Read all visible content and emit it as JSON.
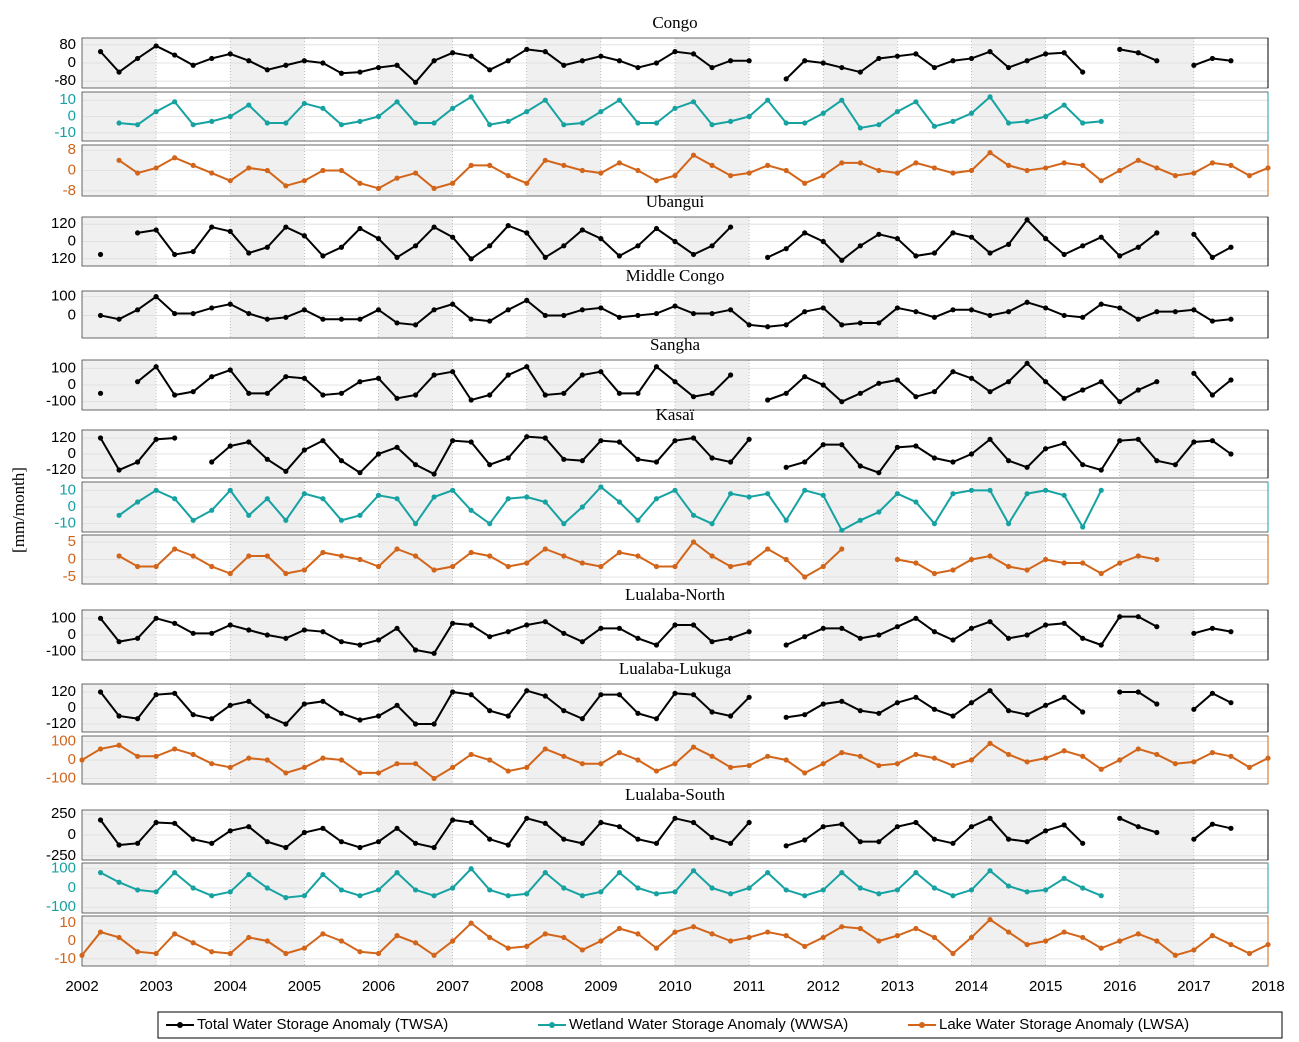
{
  "chart_data": {
    "type": "line",
    "ylabel": "[mm/month]",
    "x": [
      2002,
      2002.25,
      2002.5,
      2002.75,
      2003,
      2003.25,
      2003.5,
      2003.75,
      2004,
      2004.25,
      2004.5,
      2004.75,
      2005,
      2005.25,
      2005.5,
      2005.75,
      2006,
      2006.25,
      2006.5,
      2006.75,
      2007,
      2007.25,
      2007.5,
      2007.75,
      2008,
      2008.25,
      2008.5,
      2008.75,
      2009,
      2009.25,
      2009.5,
      2009.75,
      2010,
      2010.25,
      2010.5,
      2010.75,
      2011,
      2011.25,
      2011.5,
      2011.75,
      2012,
      2012.25,
      2012.5,
      2012.75,
      2013,
      2013.25,
      2013.5,
      2013.75,
      2014,
      2014.25,
      2014.5,
      2014.75,
      2015,
      2015.25,
      2015.5,
      2015.75,
      2016,
      2016.25,
      2016.5,
      2016.75,
      2017,
      2017.25,
      2017.5,
      2017.75,
      2018
    ],
    "xlim": [
      2002,
      2018
    ],
    "xticks": [
      2002,
      2003,
      2004,
      2005,
      2006,
      2007,
      2008,
      2009,
      2010,
      2011,
      2012,
      2013,
      2014,
      2015,
      2016,
      2017,
      2018
    ],
    "legend": [
      {
        "name": "Total Water Storage Anomaly (TWSA)",
        "color": "#000000"
      },
      {
        "name": "Wetland Water Storage Anomaly (WWSA)",
        "color": "#17a2a2"
      },
      {
        "name": "Lake Water Storage Anomaly (LWSA)",
        "color": "#d2651a"
      }
    ],
    "panels": [
      {
        "title": "Congo",
        "color": "#000000",
        "ylim": [
          -110,
          110
        ],
        "yticks": [
          -80,
          0,
          80
        ],
        "values": [
          null,
          50,
          -40,
          20,
          75,
          35,
          -10,
          20,
          40,
          10,
          -30,
          -10,
          10,
          0,
          -45,
          -40,
          -20,
          -10,
          -85,
          10,
          45,
          30,
          -30,
          10,
          60,
          50,
          -10,
          10,
          30,
          10,
          -20,
          0,
          50,
          40,
          -20,
          10,
          10,
          null,
          -70,
          10,
          0,
          -20,
          -40,
          20,
          30,
          40,
          -20,
          10,
          20,
          50,
          -20,
          10,
          40,
          45,
          -40,
          null,
          60,
          45,
          10,
          null,
          -10,
          20,
          10,
          null,
          null
        ]
      },
      {
        "color": "#17a2a2",
        "ylim": [
          -15,
          15
        ],
        "yticks": [
          -10,
          0,
          10
        ],
        "values": [
          null,
          null,
          -4,
          -5,
          3,
          9,
          -5,
          -3,
          0,
          7,
          -4,
          -4,
          8,
          5,
          -5,
          -3,
          0,
          9,
          -4,
          -4,
          5,
          12,
          -5,
          -3,
          3,
          10,
          -5,
          -4,
          3,
          10,
          -4,
          -4,
          5,
          9,
          -5,
          -3,
          0,
          10,
          -4,
          -4,
          2,
          10,
          -7,
          -5,
          3,
          9,
          -6,
          -3,
          2,
          12,
          -4,
          -3,
          0,
          7,
          -4,
          -3,
          null,
          null,
          null,
          null,
          null,
          null,
          null,
          null,
          null
        ]
      },
      {
        "color": "#d2651a",
        "ylim": [
          -10,
          10
        ],
        "yticks": [
          -8,
          0,
          8
        ],
        "values": [
          null,
          null,
          4,
          -1,
          1,
          5,
          2,
          -1,
          -4,
          1,
          0,
          -6,
          -4,
          0,
          0,
          -5,
          -7,
          -3,
          -1,
          -7,
          -5,
          2,
          2,
          -2,
          -5,
          4,
          2,
          0,
          -1,
          3,
          0,
          -4,
          -2,
          6,
          2,
          -2,
          -1,
          2,
          0,
          -5,
          -2,
          3,
          3,
          0,
          -1,
          3,
          1,
          -1,
          0,
          7,
          2,
          0,
          1,
          3,
          2,
          -4,
          0,
          4,
          1,
          -2,
          -1,
          3,
          2,
          -2,
          1
        ]
      },
      {
        "title": "Ubangui",
        "color": "#000000",
        "ylim": [
          -170,
          170
        ],
        "yticks": [
          {
            "value": -120,
            "label": "120"
          },
          0,
          120
        ],
        "values": [
          null,
          -90,
          null,
          60,
          80,
          -90,
          -70,
          100,
          70,
          -80,
          -40,
          100,
          40,
          -100,
          -40,
          90,
          20,
          -110,
          -30,
          100,
          30,
          -120,
          -30,
          110,
          60,
          -110,
          -30,
          80,
          20,
          -100,
          -30,
          90,
          0,
          -90,
          -30,
          100,
          null,
          -110,
          -50,
          60,
          0,
          -130,
          -30,
          50,
          20,
          -100,
          -80,
          60,
          30,
          -80,
          -20,
          150,
          20,
          -90,
          -30,
          30,
          -100,
          -40,
          60,
          null,
          50,
          -110,
          -40,
          null,
          null
        ]
      },
      {
        "title": "Middle Congo",
        "color": "#000000",
        "ylim": [
          -120,
          130
        ],
        "yticks": [
          0,
          100
        ],
        "values": [
          null,
          0,
          -20,
          30,
          100,
          10,
          10,
          40,
          60,
          10,
          -20,
          -10,
          30,
          -20,
          -20,
          -20,
          30,
          -40,
          -50,
          30,
          60,
          -20,
          -30,
          30,
          80,
          0,
          0,
          30,
          40,
          -10,
          0,
          10,
          50,
          10,
          10,
          30,
          -50,
          -60,
          -50,
          20,
          40,
          -50,
          -40,
          -40,
          40,
          20,
          -10,
          30,
          30,
          0,
          20,
          70,
          40,
          0,
          -10,
          60,
          40,
          -20,
          20,
          20,
          30,
          -30,
          -20,
          null,
          null
        ]
      },
      {
        "title": "Sangha",
        "color": "#000000",
        "ylim": [
          -150,
          150
        ],
        "yticks": [
          -100,
          0,
          100
        ],
        "values": [
          null,
          -50,
          null,
          20,
          110,
          -60,
          -40,
          50,
          90,
          -50,
          -50,
          50,
          40,
          -60,
          -50,
          20,
          40,
          -80,
          -60,
          60,
          80,
          -90,
          -60,
          60,
          110,
          -60,
          -50,
          60,
          80,
          -50,
          -50,
          110,
          20,
          -70,
          -50,
          60,
          null,
          -90,
          -50,
          50,
          0,
          -100,
          -50,
          10,
          30,
          -70,
          -40,
          80,
          40,
          -40,
          20,
          130,
          20,
          -80,
          -30,
          20,
          -100,
          -30,
          20,
          null,
          70,
          -60,
          30,
          null,
          null
        ]
      },
      {
        "title": "Kasaï",
        "color": "#000000",
        "ylim": [
          -180,
          180
        ],
        "yticks": [
          -120,
          0,
          120
        ],
        "values": [
          null,
          120,
          -120,
          -60,
          110,
          120,
          null,
          -60,
          60,
          90,
          -40,
          -130,
          30,
          100,
          -50,
          -140,
          0,
          50,
          -80,
          -150,
          100,
          90,
          -80,
          -30,
          130,
          120,
          -40,
          -50,
          100,
          90,
          -40,
          -60,
          100,
          120,
          -30,
          -60,
          110,
          null,
          -100,
          -60,
          70,
          70,
          -90,
          -140,
          50,
          60,
          -30,
          -60,
          0,
          110,
          -50,
          -100,
          40,
          80,
          -80,
          -120,
          100,
          110,
          -50,
          -80,
          90,
          100,
          0,
          null,
          null
        ]
      },
      {
        "color": "#17a2a2",
        "ylim": [
          -15,
          15
        ],
        "yticks": [
          -10,
          0,
          10
        ],
        "values": [
          null,
          null,
          -5,
          3,
          10,
          5,
          -8,
          -2,
          10,
          -5,
          5,
          -8,
          8,
          5,
          -8,
          -5,
          7,
          5,
          -10,
          6,
          10,
          -2,
          -10,
          5,
          6,
          3,
          -10,
          0,
          12,
          3,
          -8,
          5,
          10,
          -5,
          -10,
          8,
          6,
          8,
          -8,
          10,
          7,
          -14,
          -8,
          -3,
          8,
          3,
          -10,
          8,
          10,
          10,
          -10,
          8,
          10,
          7,
          -12,
          10,
          null,
          null,
          null,
          null,
          null,
          null,
          null,
          null,
          null
        ]
      },
      {
        "color": "#d2651a",
        "ylim": [
          -7,
          7
        ],
        "yticks": [
          -5,
          0,
          5
        ],
        "values": [
          null,
          null,
          1,
          -2,
          -2,
          3,
          1,
          -2,
          -4,
          1,
          1,
          -4,
          -3,
          2,
          1,
          0,
          -2,
          3,
          1,
          -3,
          -2,
          2,
          1,
          -2,
          -1,
          3,
          1,
          -1,
          -2,
          2,
          1,
          -2,
          -2,
          5,
          1,
          -2,
          -1,
          3,
          0,
          -5,
          -2,
          3,
          null,
          null,
          0,
          -1,
          -4,
          -3,
          0,
          1,
          -2,
          -3,
          0,
          -1,
          -1,
          -4,
          -1,
          1,
          0,
          null,
          null,
          null,
          null,
          null,
          null
        ]
      },
      {
        "title": "Lualaba-North",
        "color": "#000000",
        "ylim": [
          -150,
          150
        ],
        "yticks": [
          -100,
          0,
          100
        ],
        "values": [
          null,
          100,
          -40,
          -20,
          100,
          70,
          10,
          10,
          60,
          30,
          0,
          -20,
          30,
          20,
          -40,
          -60,
          -30,
          40,
          -90,
          -110,
          70,
          60,
          -10,
          20,
          60,
          80,
          10,
          -40,
          40,
          40,
          -20,
          -60,
          60,
          60,
          -40,
          -20,
          20,
          null,
          -60,
          -10,
          40,
          40,
          -20,
          0,
          50,
          100,
          20,
          -30,
          40,
          80,
          -20,
          0,
          60,
          70,
          -20,
          -60,
          110,
          110,
          50,
          null,
          10,
          40,
          20,
          null,
          null
        ]
      },
      {
        "title": "Lualaba-Lukuga",
        "color": "#000000",
        "ylim": [
          -180,
          180
        ],
        "yticks": [
          -120,
          0,
          120
        ],
        "values": [
          null,
          120,
          -60,
          -80,
          100,
          110,
          -50,
          -80,
          20,
          50,
          -60,
          -120,
          30,
          50,
          -40,
          -90,
          -60,
          20,
          -120,
          -120,
          120,
          100,
          -20,
          -60,
          130,
          90,
          -20,
          -80,
          100,
          100,
          -40,
          -80,
          110,
          100,
          -30,
          -60,
          80,
          null,
          -70,
          -50,
          30,
          50,
          -20,
          -40,
          40,
          80,
          -10,
          -60,
          40,
          130,
          -20,
          -50,
          20,
          80,
          -30,
          null,
          120,
          120,
          30,
          null,
          -10,
          110,
          40,
          null,
          null
        ]
      },
      {
        "color": "#d2651a",
        "ylim": [
          -130,
          130
        ],
        "yticks": [
          -100,
          0,
          100
        ],
        "values": [
          0,
          60,
          80,
          20,
          20,
          60,
          30,
          -20,
          -40,
          10,
          0,
          -70,
          -40,
          10,
          0,
          -70,
          -70,
          -20,
          -20,
          -100,
          -40,
          30,
          0,
          -60,
          -40,
          60,
          20,
          -20,
          -20,
          40,
          0,
          -60,
          -20,
          70,
          20,
          -40,
          -30,
          20,
          0,
          -70,
          -20,
          40,
          20,
          -30,
          -20,
          30,
          10,
          -30,
          0,
          90,
          30,
          -10,
          10,
          50,
          20,
          -50,
          0,
          60,
          30,
          -20,
          -10,
          40,
          20,
          -40,
          10
        ]
      },
      {
        "title": "Lualaba-South",
        "color": "#000000",
        "ylim": [
          -300,
          300
        ],
        "yticks": [
          -250,
          0,
          250
        ],
        "values": [
          null,
          180,
          -120,
          -100,
          150,
          140,
          -50,
          -100,
          50,
          100,
          -80,
          -150,
          30,
          80,
          -80,
          -150,
          -80,
          80,
          -100,
          -150,
          180,
          150,
          -50,
          -120,
          200,
          140,
          -50,
          -100,
          150,
          100,
          -50,
          -100,
          200,
          150,
          -30,
          -100,
          150,
          null,
          -130,
          -60,
          100,
          130,
          -80,
          -80,
          100,
          150,
          -50,
          -100,
          100,
          200,
          -50,
          -80,
          50,
          120,
          -100,
          null,
          200,
          100,
          30,
          null,
          -50,
          130,
          80,
          null,
          null
        ]
      },
      {
        "color": "#17a2a2",
        "ylim": [
          -130,
          130
        ],
        "yticks": [
          -100,
          0,
          100
        ],
        "values": [
          null,
          80,
          30,
          -10,
          -20,
          80,
          0,
          -40,
          -20,
          70,
          0,
          -50,
          -40,
          70,
          -10,
          -40,
          -10,
          80,
          -10,
          -40,
          0,
          100,
          -10,
          -40,
          -30,
          80,
          0,
          -40,
          -20,
          80,
          0,
          -30,
          -20,
          90,
          0,
          -30,
          0,
          80,
          -10,
          -40,
          -10,
          80,
          0,
          -30,
          -10,
          80,
          0,
          -40,
          -10,
          90,
          10,
          -20,
          -10,
          50,
          0,
          -40,
          null,
          null,
          null,
          null,
          null,
          null,
          null,
          null,
          null
        ]
      },
      {
        "color": "#d2651a",
        "ylim": [
          -14,
          14
        ],
        "yticks": [
          -10,
          0,
          10
        ],
        "values": [
          -8,
          5,
          2,
          -6,
          -7,
          4,
          -1,
          -6,
          -7,
          2,
          0,
          -7,
          -4,
          4,
          0,
          -6,
          -7,
          3,
          -1,
          -8,
          0,
          10,
          2,
          -4,
          -3,
          4,
          2,
          -5,
          0,
          7,
          4,
          -4,
          5,
          8,
          4,
          0,
          2,
          5,
          3,
          -3,
          2,
          8,
          7,
          0,
          3,
          7,
          2,
          -7,
          2,
          12,
          5,
          -2,
          0,
          5,
          2,
          -4,
          0,
          4,
          0,
          -8,
          -5,
          3,
          -2,
          -7,
          -2
        ]
      }
    ]
  }
}
